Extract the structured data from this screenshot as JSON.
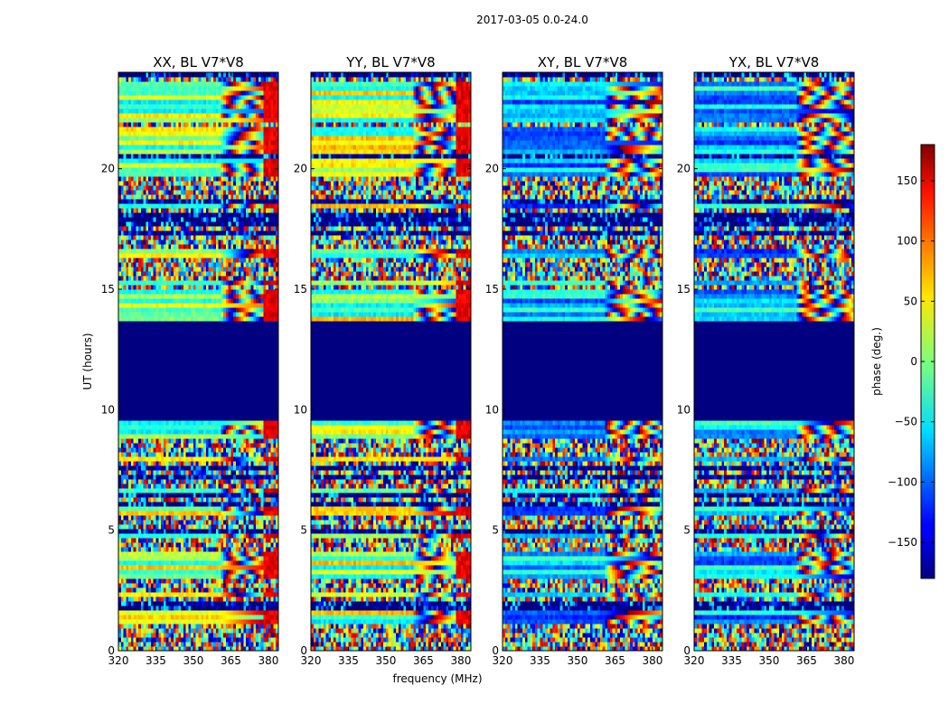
{
  "chart_data": {
    "type": "heatmap",
    "suptitle": "2017-03-05 0.0-24.0",
    "xlabel": "frequency (MHz)",
    "ylabel": "UT (hours)",
    "xlim": [
      320,
      384
    ],
    "ylim": [
      0,
      24
    ],
    "xticks": [
      320,
      335,
      350,
      365,
      380
    ],
    "yticks": [
      0,
      5,
      10,
      15,
      20
    ],
    "colormap": "jet",
    "colorbar": {
      "label": "phase (deg.)",
      "range": [
        -180,
        180
      ],
      "ticks": [
        -150,
        -100,
        -50,
        0,
        50,
        100,
        150
      ],
      "tick_labels": [
        "−150",
        "−100",
        "−50",
        "0",
        "50",
        "100",
        "150"
      ]
    },
    "flagged_interval_hours": [
      9.6,
      13.6
    ],
    "smooth_channel_range_mhz": [
      320,
      361
    ],
    "panels": [
      {
        "title": "XX, BL V7*V8",
        "polarization": "XX"
      },
      {
        "title": "YY, BL V7*V8",
        "polarization": "YY"
      },
      {
        "title": "XY, BL V7*V8",
        "polarization": "XY"
      },
      {
        "title": "YX, BL V7*V8",
        "polarization": "YX"
      }
    ]
  }
}
